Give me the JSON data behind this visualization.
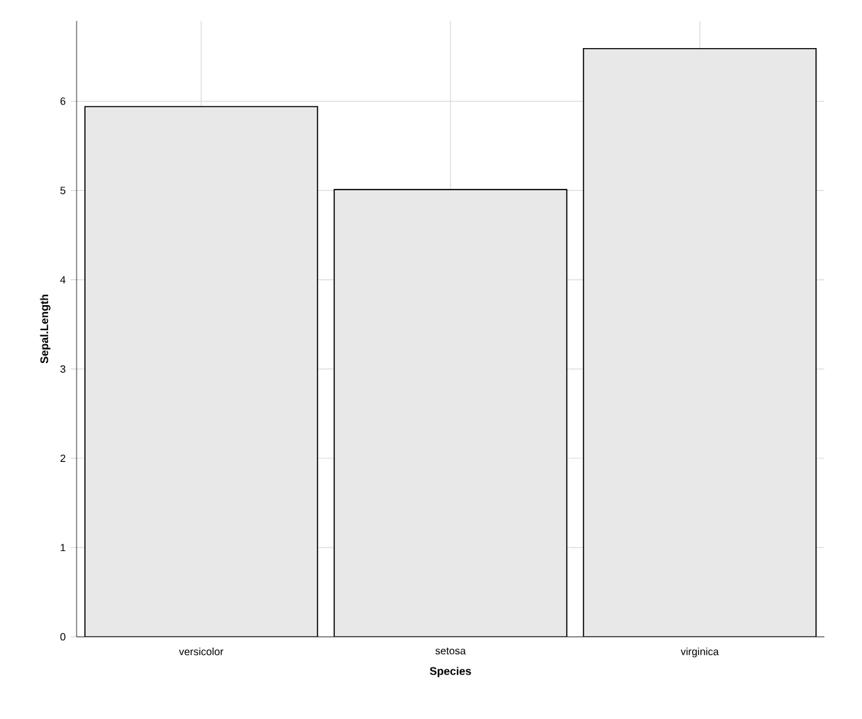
{
  "chart_data": {
    "type": "bar",
    "xlabel": "Species",
    "ylabel": "Sepal.Length",
    "categories": [
      "versicolor",
      "setosa",
      "virginica"
    ],
    "values": [
      5.94,
      5.01,
      6.59
    ],
    "color": "#e8e8e8",
    "ylim": [
      0,
      6.9
    ],
    "yticks": [
      0,
      1,
      2,
      3,
      4,
      5,
      6
    ],
    "grid": true
  }
}
